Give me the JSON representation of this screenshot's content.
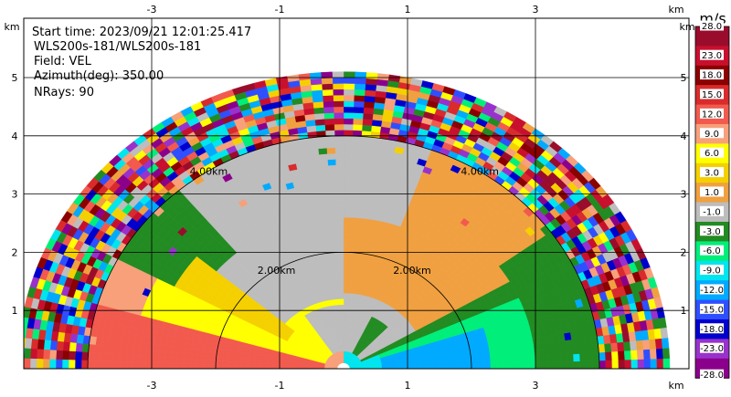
{
  "info": {
    "start_time": "Start time: 2023/09/21 12:01:25.417",
    "site": "WLS200s-181/WLS200s-181",
    "field": "Field: VEL",
    "azimuth": "Azimuth(deg): 350.00",
    "nrays": "NRays: 90"
  },
  "chart_data": {
    "type": "heatmap",
    "subtype": "ppi-radar",
    "field": "VEL",
    "start_time": "2023/09/21 12:01:25.417",
    "site": "WLS200s-181/WLS200s-181",
    "azimuth_deg": 350.0,
    "nrays": 90,
    "x_unit": "km",
    "y_unit": "km",
    "xlim": [
      -5.5,
      4.0
    ],
    "ylim": [
      0,
      5.6
    ],
    "x_ticks": [
      -3,
      -1,
      1,
      3
    ],
    "y_ticks": [
      1,
      2,
      3,
      4,
      5
    ],
    "range_rings_km": [
      2.0,
      4.0
    ],
    "range_ring_labels": [
      "2.00km",
      "4.00km"
    ],
    "colorbar": {
      "unit": "m/s",
      "levels": [
        "28.0",
        "23.0",
        "18.0",
        "15.0",
        "12.0",
        "9.0",
        "6.0",
        "3.0",
        "1.0",
        "-1.0",
        "-3.0",
        "-6.0",
        "-9.0",
        "-12.0",
        "-15.0",
        "-18.0",
        "-23.0",
        "-28.0"
      ],
      "colors": [
        "#9a0c2c",
        "#c8102e",
        "#8b0000",
        "#d92b2b",
        "#f25a4e",
        "#f7a07a",
        "#ffff00",
        "#f5d000",
        "#f0a040",
        "#bdbdbd",
        "#228b22",
        "#00ee7a",
        "#00e5ee",
        "#00aaff",
        "#2f4fff",
        "#0000cd",
        "#9932cc",
        "#8b008b"
      ]
    },
    "regions": [
      {
        "name": "outer speckle (unreliable)",
        "range_km": [
          4.0,
          5.0
        ],
        "value": "mixed"
      },
      {
        "name": "near-surface receding core (left)",
        "range_km": [
          0.3,
          4.0
        ],
        "value_ms": 12.0
      },
      {
        "name": "yellow band (left)",
        "range_km": [
          1.0,
          3.3
        ],
        "value_ms": 6.0
      },
      {
        "name": "orange band",
        "range_km": [
          1.5,
          4.0
        ],
        "value_ms": 1.0
      },
      {
        "name": "approaching core (right)",
        "range_km": [
          0.3,
          4.0
        ],
        "value_ms": -12.0
      },
      {
        "name": "cyan band (right)",
        "range_km": [
          0.5,
          3.0
        ],
        "value_ms": -9.0
      },
      {
        "name": "green band",
        "range_km": [
          2.3,
          3.3
        ],
        "value_ms": -3.0
      }
    ]
  }
}
